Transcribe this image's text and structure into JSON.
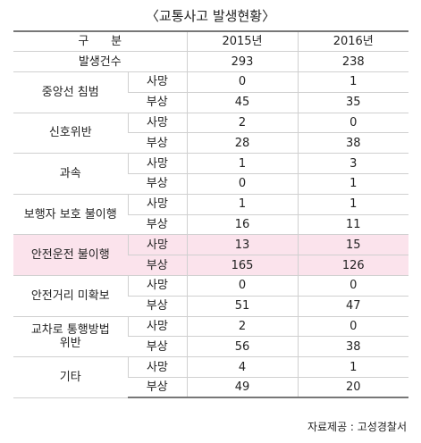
{
  "title": "〈교통사고 발생현황〉",
  "header": {
    "division": "구      분",
    "years": [
      "2015년",
      "2016년"
    ]
  },
  "total": {
    "label": "발생건수",
    "values": [
      "293",
      "238"
    ]
  },
  "categories": [
    {
      "name": "중앙선 침범",
      "rows": [
        {
          "type": "사망",
          "values": [
            "0",
            "1"
          ]
        },
        {
          "type": "부상",
          "values": [
            "45",
            "35"
          ]
        }
      ]
    },
    {
      "name": "신호위반",
      "rows": [
        {
          "type": "사망",
          "values": [
            "2",
            "0"
          ]
        },
        {
          "type": "부상",
          "values": [
            "28",
            "38"
          ]
        }
      ]
    },
    {
      "name": "과속",
      "rows": [
        {
          "type": "사망",
          "values": [
            "1",
            "3"
          ]
        },
        {
          "type": "부상",
          "values": [
            "0",
            "1"
          ]
        }
      ]
    },
    {
      "name": "보행자 보호 불이행",
      "rows": [
        {
          "type": "사망",
          "values": [
            "1",
            "1"
          ]
        },
        {
          "type": "부상",
          "values": [
            "16",
            "11"
          ]
        }
      ]
    },
    {
      "name": "안전운전 불이행",
      "highlight": true,
      "rows": [
        {
          "type": "사망",
          "values": [
            "13",
            "15"
          ]
        },
        {
          "type": "부상",
          "values": [
            "165",
            "126"
          ]
        }
      ]
    },
    {
      "name": "안전거리 미확보",
      "rows": [
        {
          "type": "사망",
          "values": [
            "0",
            "0"
          ]
        },
        {
          "type": "부상",
          "values": [
            "51",
            "47"
          ]
        }
      ]
    },
    {
      "name": "교차로 통행방법\n위반",
      "rows": [
        {
          "type": "사망",
          "values": [
            "2",
            "0"
          ]
        },
        {
          "type": "부상",
          "values": [
            "56",
            "38"
          ]
        }
      ]
    },
    {
      "name": "기타",
      "rows": [
        {
          "type": "사망",
          "values": [
            "4",
            "1"
          ]
        },
        {
          "type": "부상",
          "values": [
            "49",
            "20"
          ]
        }
      ]
    }
  ],
  "source": "자료제공 : 고성경찰서"
}
